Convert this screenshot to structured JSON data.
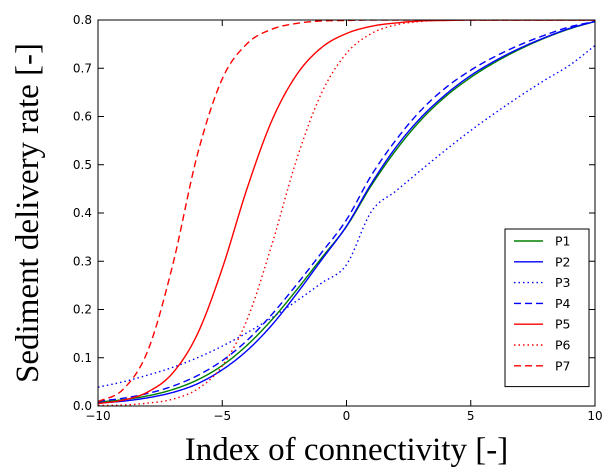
{
  "chart_data": {
    "type": "line",
    "title": "",
    "xlabel": "Index of connectivity [-]",
    "ylabel": "Sediment delivery rate [-]",
    "xlim": [
      -10,
      10
    ],
    "ylim": [
      0,
      0.8
    ],
    "x_ticks": [
      -10,
      -5,
      0,
      5,
      10
    ],
    "x_tick_labels": [
      "−10",
      "−5",
      "0",
      "5",
      "10"
    ],
    "y_ticks": [
      0.0,
      0.1,
      0.2,
      0.3,
      0.4,
      0.5,
      0.6,
      0.7,
      0.8
    ],
    "y_tick_labels": [
      "0.0",
      "0.1",
      "0.2",
      "0.3",
      "0.4",
      "0.5",
      "0.6",
      "0.7",
      "0.8"
    ],
    "grid": false,
    "legend_position": "lower-right",
    "x": [
      -10,
      -9,
      -8,
      -7,
      -6,
      -5,
      -4,
      -3,
      -2,
      -1,
      0,
      1,
      2,
      3,
      4,
      5,
      6,
      7,
      8,
      9,
      10
    ],
    "series": [
      {
        "name": "P1",
        "color": "#008000",
        "dash": "solid",
        "values": [
          0.008,
          0.013,
          0.021,
          0.034,
          0.054,
          0.084,
          0.126,
          0.179,
          0.241,
          0.307,
          0.372,
          0.457,
          0.531,
          0.593,
          0.642,
          0.681,
          0.713,
          0.74,
          0.763,
          0.782,
          0.797
        ]
      },
      {
        "name": "P2",
        "color": "#0000ff",
        "dash": "solid",
        "values": [
          0.006,
          0.01,
          0.017,
          0.028,
          0.046,
          0.075,
          0.115,
          0.168,
          0.233,
          0.303,
          0.373,
          0.461,
          0.537,
          0.598,
          0.646,
          0.685,
          0.716,
          0.742,
          0.764,
          0.783,
          0.797
        ]
      },
      {
        "name": "P3",
        "color": "#0000ff",
        "dash": "dotted",
        "values": [
          0.039,
          0.05,
          0.064,
          0.08,
          0.1,
          0.124,
          0.152,
          0.183,
          0.218,
          0.255,
          0.293,
          0.403,
          0.446,
          0.489,
          0.531,
          0.571,
          0.608,
          0.643,
          0.676,
          0.707,
          0.747
        ]
      },
      {
        "name": "P4",
        "color": "#0000ff",
        "dash": "dashed",
        "values": [
          0.01,
          0.016,
          0.026,
          0.041,
          0.063,
          0.094,
          0.136,
          0.19,
          0.252,
          0.318,
          0.386,
          0.478,
          0.552,
          0.613,
          0.66,
          0.696,
          0.725,
          0.749,
          0.769,
          0.786,
          0.797
        ]
      },
      {
        "name": "P5",
        "color": "#ff0000",
        "dash": "solid",
        "values": [
          0.005,
          0.012,
          0.029,
          0.068,
          0.149,
          0.285,
          0.451,
          0.592,
          0.687,
          0.743,
          0.772,
          0.787,
          0.794,
          0.798,
          0.799,
          0.8,
          0.8,
          0.8,
          0.8,
          0.8,
          0.8
        ]
      },
      {
        "name": "P6",
        "color": "#ff0000",
        "dash": "dotted",
        "values": [
          0.001,
          0.002,
          0.006,
          0.014,
          0.035,
          0.083,
          0.179,
          0.335,
          0.512,
          0.649,
          0.731,
          0.772,
          0.79,
          0.797,
          0.8,
          0.8,
          0.8,
          0.8,
          0.8,
          0.8,
          0.8
        ]
      },
      {
        "name": "P7",
        "color": "#ff0000",
        "dash": "dashed",
        "values": [
          0.009,
          0.034,
          0.114,
          0.291,
          0.521,
          0.678,
          0.751,
          0.781,
          0.793,
          0.798,
          0.799,
          0.8,
          0.8,
          0.8,
          0.8,
          0.8,
          0.8,
          0.8,
          0.8,
          0.8,
          0.8
        ]
      }
    ]
  }
}
